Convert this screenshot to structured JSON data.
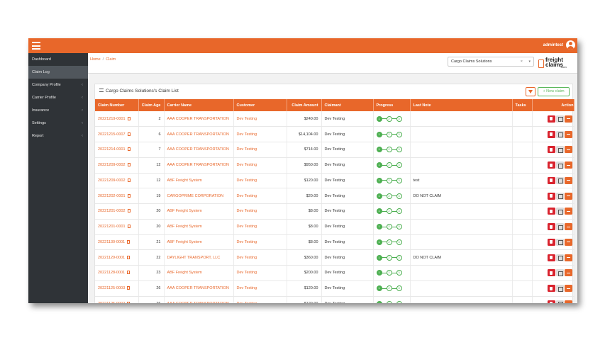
{
  "topbar": {
    "user_name": "admintest"
  },
  "sidebar": {
    "items": [
      {
        "label": "Dashboard",
        "caret": ""
      },
      {
        "label": "Claim Log",
        "caret": ""
      },
      {
        "label": "Company Profile",
        "caret": "‹"
      },
      {
        "label": "Carrier Profile",
        "caret": "‹"
      },
      {
        "label": "Insurance",
        "caret": "‹"
      },
      {
        "label": "Settings",
        "caret": "‹"
      },
      {
        "label": "Report",
        "caret": "‹"
      }
    ]
  },
  "breadcrumb": {
    "home": "Home",
    "separator": "/",
    "current": "Claim"
  },
  "company_select": {
    "value": "Cargo Claims Solutions",
    "clear": "×",
    "dropdown": "▾"
  },
  "logo": {
    "line1": "freight",
    "line2": "claims",
    "line3": ".com"
  },
  "panel": {
    "title": "Cargo Claims Solutions's Claim List",
    "new_claim_label": "+ New claim"
  },
  "table": {
    "headers": [
      "Claim Number",
      "Claim Age",
      "Carrier Name",
      "Customer",
      "Claim Amount",
      "Claimant",
      "Progress",
      "Last Note",
      "Tasks",
      "Action"
    ],
    "rows": [
      {
        "claim": "20221219-0001",
        "age": "2",
        "carrier": "AAA COOPER TRANSPORTATION",
        "customer": "Dev Testing",
        "amount": "$240.00",
        "claimant": "Dev Testing",
        "note": "",
        "tasks": ""
      },
      {
        "claim": "20221215-0007",
        "age": "6",
        "carrier": "AAA COOPER TRANSPORTATION",
        "customer": "Dev Testing",
        "amount": "$14,104.00",
        "claimant": "Dev Testing",
        "note": "",
        "tasks": ""
      },
      {
        "claim": "20221214-0001",
        "age": "7",
        "carrier": "AAA COOPER TRANSPORTATION",
        "customer": "Dev Testing",
        "amount": "$714.00",
        "claimant": "Dev Testing",
        "note": "",
        "tasks": ""
      },
      {
        "claim": "20221209-0002",
        "age": "12",
        "carrier": "AAA COOPER TRANSPORTATION",
        "customer": "Dev Testing",
        "amount": "$950.00",
        "claimant": "Dev Testing",
        "note": "",
        "tasks": ""
      },
      {
        "claim": "20221209-0002",
        "age": "12",
        "carrier": "ABF Freight System",
        "customer": "Dev Testing",
        "amount": "$120.00",
        "claimant": "Dev Testing",
        "note": "test",
        "tasks": ""
      },
      {
        "claim": "20221202-0001",
        "age": "19",
        "carrier": "CARGOPRIME CORPORATION",
        "customer": "Dev Testing",
        "amount": "$20.00",
        "claimant": "Dev Testing",
        "note": "DO NOT CLAIM",
        "tasks": ""
      },
      {
        "claim": "20221201-0002",
        "age": "20",
        "carrier": "ABF Freight System",
        "customer": "Dev Testing",
        "amount": "$8.00",
        "claimant": "Dev Testing",
        "note": "",
        "tasks": ""
      },
      {
        "claim": "20221201-0001",
        "age": "20",
        "carrier": "ABF Freight System",
        "customer": "Dev Testing",
        "amount": "$8.00",
        "claimant": "Dev Testing",
        "note": "",
        "tasks": ""
      },
      {
        "claim": "20221130-0001",
        "age": "21",
        "carrier": "ABF Freight System",
        "customer": "Dev Testing",
        "amount": "$8.00",
        "claimant": "Dev Testing",
        "note": "",
        "tasks": ""
      },
      {
        "claim": "20221129-0001",
        "age": "22",
        "carrier": "DAYLIGHT TRANSPORT, LLC",
        "customer": "Dev Testing",
        "amount": "$360.00",
        "claimant": "Dev Testing",
        "note": "DO NOT CLAIM",
        "tasks": ""
      },
      {
        "claim": "20221128-0001",
        "age": "23",
        "carrier": "ABF Freight System",
        "customer": "Dev Testing",
        "amount": "$200.00",
        "claimant": "Dev Testing",
        "note": "",
        "tasks": ""
      },
      {
        "claim": "20221125-0003",
        "age": "26",
        "carrier": "AAA COOPER TRANSPORTATION",
        "customer": "Dev Testing",
        "amount": "$120.00",
        "claimant": "Dev Testing",
        "note": "",
        "tasks": ""
      },
      {
        "claim": "20221125-0002",
        "age": "26",
        "carrier": "AAA COOPER TRANSPORTATION",
        "customer": "Dev Testing",
        "amount": "$120.00",
        "claimant": "Dev Testing",
        "note": "",
        "tasks": ""
      }
    ],
    "progress_steps": [
      "1",
      "2",
      "3"
    ]
  },
  "colors": {
    "brand": "#e8672a",
    "sidebar": "#2f3337",
    "success": "#4caf50",
    "danger": "#d9232e"
  },
  "icons": {
    "menu": "hamburger-icon",
    "user": "user-avatar-icon",
    "filter": "filter-icon",
    "pdf": "pdf-icon",
    "delete": "trash-icon",
    "edit": "edit-icon",
    "more": "minus-icon",
    "list": "list-icon"
  }
}
